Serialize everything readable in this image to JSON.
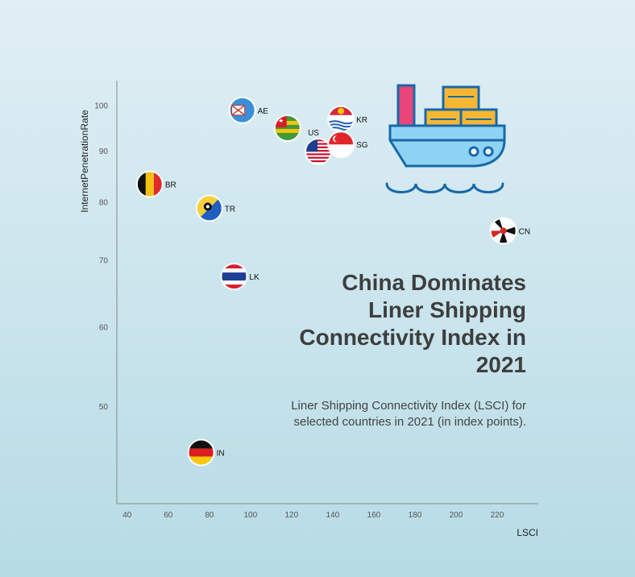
{
  "chart_data": {
    "type": "scatter",
    "title": "China Dominates Liner Shipping Connectivity Index in 2021",
    "subtitle": "Liner Shipping Connectivity Index (LSCI) for selected countries in 2021 (in index points).",
    "xlabel": "LSCI",
    "ylabel": "InternetPenetrationRate",
    "xlim": [
      35,
      240
    ],
    "ylim": [
      40,
      106
    ],
    "y_scale": "log",
    "x_ticks": [
      40,
      60,
      80,
      100,
      120,
      140,
      160,
      180,
      200,
      220
    ],
    "y_ticks": [
      50,
      60,
      70,
      80,
      90,
      100
    ],
    "grid": false,
    "points": [
      {
        "label": "AE",
        "x": 96,
        "y": 99.0
      },
      {
        "label": "KR",
        "x": 144,
        "y": 97.0
      },
      {
        "label": "US",
        "x": 133,
        "y": 90.0
      },
      {
        "label": "SG",
        "x": 144,
        "y": 91.5
      },
      {
        "label": "BR",
        "x": 51,
        "y": 83.5
      },
      {
        "label": "TR",
        "x": 80,
        "y": 79.0
      },
      {
        "label": "CN",
        "x": 223,
        "y": 75.0
      },
      {
        "label": "LK",
        "x": 92,
        "y": 67.5
      },
      {
        "label": "IN",
        "x": 76,
        "y": 45.0
      },
      {
        "label": "",
        "x": 118,
        "y": 95.0
      }
    ]
  }
}
